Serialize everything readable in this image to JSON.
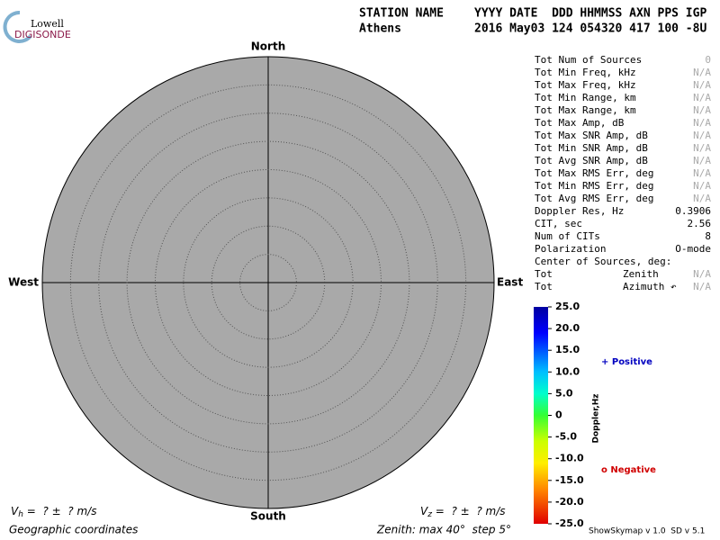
{
  "header": {
    "logo_top": "Lowell",
    "logo_bottom": "DIGISONDE",
    "station_label": "STATION NAME",
    "fields_label": "YYYY DATE  DDD HHMMSS AXN PPS IGP",
    "station": "Athens",
    "fields": "2016 May03 124 054320 417 100 -8U"
  },
  "directions": {
    "north": "North",
    "south": "South",
    "east": "East",
    "west": "West"
  },
  "stats": [
    {
      "label": "Tot Num of Sources",
      "value": "0",
      "color": "#aaaaaa"
    },
    {
      "label": "Tot Min Freq, kHz",
      "value": "N/A",
      "color": "#aaaaaa"
    },
    {
      "label": "Tot Max Freq, kHz",
      "value": "N/A",
      "color": "#aaaaaa"
    },
    {
      "label": "Tot Min Range, km",
      "value": "N/A",
      "color": "#aaaaaa"
    },
    {
      "label": "Tot Max Range, km",
      "value": "N/A",
      "color": "#aaaaaa"
    },
    {
      "label": "Tot Max Amp, dB",
      "value": "N/A",
      "color": "#aaaaaa"
    },
    {
      "label": "Tot Max SNR Amp, dB",
      "value": "N/A",
      "color": "#aaaaaa"
    },
    {
      "label": "Tot Min SNR Amp, dB",
      "value": "N/A",
      "color": "#aaaaaa"
    },
    {
      "label": "Tot Avg SNR Amp, dB",
      "value": "N/A",
      "color": "#aaaaaa"
    },
    {
      "label": "Tot Max RMS Err, deg",
      "value": "N/A",
      "color": "#aaaaaa"
    },
    {
      "label": "Tot Min RMS Err, deg",
      "value": "N/A",
      "color": "#aaaaaa"
    },
    {
      "label": "Tot Avg RMS Err, deg",
      "value": "N/A",
      "color": "#aaaaaa"
    },
    {
      "label": "Doppler Res, Hz",
      "value": "0.3906",
      "color": "#000000"
    },
    {
      "label": "CIT, sec",
      "value": "2.56",
      "color": "#000000"
    },
    {
      "label": "Num of CITs",
      "value": "8",
      "color": "#000000"
    },
    {
      "label": "Polarization",
      "value": "O-mode",
      "color": "#000000"
    },
    {
      "label": "Center of Sources, deg:"
    },
    {
      "label": "Tot",
      "middle": "Zenith",
      "value": "N/A",
      "color": "#aaaaaa"
    },
    {
      "label": "Tot",
      "middle": "Azimuth ↶",
      "value": "N/A",
      "color": "#aaaaaa"
    }
  ],
  "colorbar": {
    "title": "Doppler,Hz",
    "ticks": [
      "25.0",
      "20.0",
      "15.0",
      "10.0",
      "5.0",
      "0",
      "-5.0",
      "-10.0",
      "-15.0",
      "-20.0",
      "-25.0"
    ],
    "positive": "+ Positive",
    "negative": "o Negative"
  },
  "footer": {
    "vh_symbol": "V",
    "vh_sub": "h",
    "vh_text": " =  ? ±  ? m/s",
    "vz_symbol": "V",
    "vz_sub": "z",
    "vz_text": " =  ? ±  ? m/s",
    "coordinates": "Geographic coordinates",
    "zenith": "Zenith: max 40°  step 5°",
    "version": "ShowSkymap v 1.0  SD v 5.1"
  }
}
